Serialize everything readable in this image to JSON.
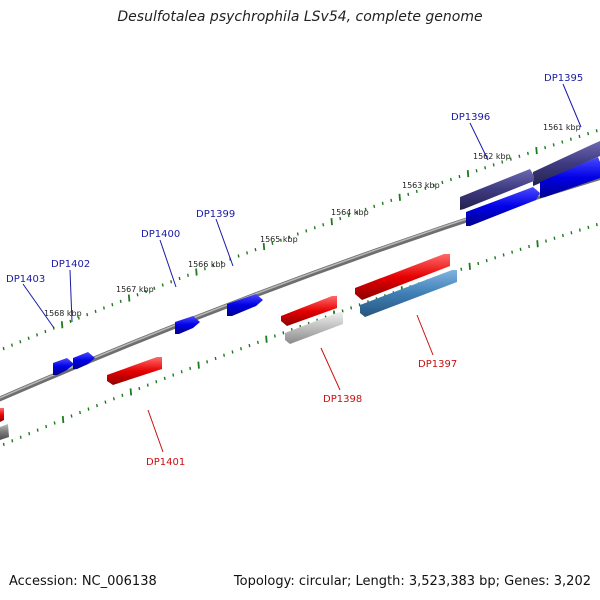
{
  "title": "Desulfotalea psychrophila LSv54, complete genome",
  "footer": {
    "accession": "Accession: NC_006138",
    "summary": "Topology: circular; Length: 3,523,383 bp; Genes: 3,202"
  },
  "colors": {
    "forward_gene": "#0000e6",
    "reverse_gene": "#e60000",
    "gray_gene": "#8c8c8c",
    "slate_gene": "#3e3a80",
    "steel_gene": "#3f7fb5",
    "tick": "#1e7a1e",
    "backbone": "#777777"
  },
  "kbp_labels": [
    {
      "text": "1561 kbp"
    },
    {
      "text": "1562 kbp"
    },
    {
      "text": "1563 kbp"
    },
    {
      "text": "1564 kbp"
    },
    {
      "text": "1565 kbp"
    },
    {
      "text": "1566 kbp"
    },
    {
      "text": "1567 kbp"
    },
    {
      "text": "1568 kbp"
    }
  ],
  "genes": [
    {
      "id": "DP1395",
      "strand": "forward"
    },
    {
      "id": "DP1396",
      "strand": "forward"
    },
    {
      "id": "DP1397",
      "strand": "reverse"
    },
    {
      "id": "DP1398",
      "strand": "reverse"
    },
    {
      "id": "DP1399",
      "strand": "forward"
    },
    {
      "id": "DP1400",
      "strand": "forward"
    },
    {
      "id": "DP1401",
      "strand": "reverse"
    },
    {
      "id": "DP1402",
      "strand": "forward"
    },
    {
      "id": "DP1403",
      "strand": "forward"
    }
  ]
}
